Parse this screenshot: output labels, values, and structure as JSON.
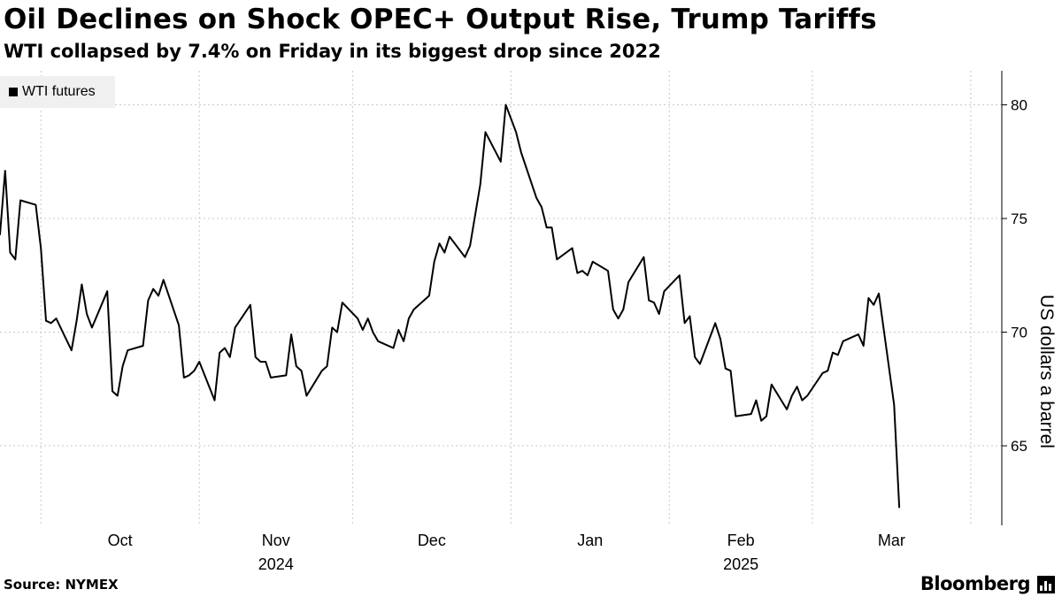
{
  "header": {
    "title": "Oil Declines on Shock OPEC+ Output Rise, Trump Tariffs",
    "subtitle": "WTI collapsed by 7.4% on Friday in its biggest drop since 2022"
  },
  "footer": {
    "source": "Source: NYMEX",
    "brand": "Bloomberg",
    "brand_icon": "bloomberg-terminal-icon"
  },
  "chart_data": {
    "type": "line",
    "ylabel": "US dollars a barrel",
    "ylim": [
      61.5,
      81.5
    ],
    "yticks": [
      65,
      70,
      75,
      80
    ],
    "y_axis_position": "right",
    "grid": "dotted",
    "legend_position": "top-left",
    "x_range": [
      "2024-09-23",
      "2025-04-05"
    ],
    "xticks": [
      {
        "label": "Oct",
        "date": "2024-10-01",
        "year": ""
      },
      {
        "label": "Nov",
        "date": "2024-11-01",
        "year": "2024"
      },
      {
        "label": "Dec",
        "date": "2024-12-01",
        "year": ""
      },
      {
        "label": "Jan",
        "date": "2025-01-01",
        "year": ""
      },
      {
        "label": "Feb",
        "date": "2025-02-01",
        "year": "2025"
      },
      {
        "label": "Mar",
        "date": "2025-03-01",
        "year": ""
      }
    ],
    "series": [
      {
        "name": "WTI futures",
        "color": "#000000",
        "points": [
          [
            "2024-09-23",
            74.3
          ],
          [
            "2024-09-24",
            77.1
          ],
          [
            "2024-09-25",
            73.5
          ],
          [
            "2024-09-26",
            73.2
          ],
          [
            "2024-09-27",
            75.8
          ],
          [
            "2024-09-30",
            75.6
          ],
          [
            "2024-10-01",
            73.7
          ],
          [
            "2024-10-02",
            70.5
          ],
          [
            "2024-10-03",
            70.4
          ],
          [
            "2024-10-04",
            70.6
          ],
          [
            "2024-10-07",
            69.2
          ],
          [
            "2024-10-08",
            70.5
          ],
          [
            "2024-10-09",
            72.1
          ],
          [
            "2024-10-10",
            70.8
          ],
          [
            "2024-10-11",
            70.2
          ],
          [
            "2024-10-14",
            71.8
          ],
          [
            "2024-10-15",
            67.4
          ],
          [
            "2024-10-16",
            67.2
          ],
          [
            "2024-10-17",
            68.5
          ],
          [
            "2024-10-18",
            69.2
          ],
          [
            "2024-10-21",
            69.4
          ],
          [
            "2024-10-22",
            71.4
          ],
          [
            "2024-10-23",
            71.9
          ],
          [
            "2024-10-24",
            71.6
          ],
          [
            "2024-10-25",
            72.3
          ],
          [
            "2024-10-28",
            70.3
          ],
          [
            "2024-10-29",
            68.0
          ],
          [
            "2024-10-30",
            68.1
          ],
          [
            "2024-10-31",
            68.3
          ],
          [
            "2024-11-01",
            68.7
          ],
          [
            "2024-11-04",
            67.0
          ],
          [
            "2024-11-05",
            69.1
          ],
          [
            "2024-11-06",
            69.3
          ],
          [
            "2024-11-07",
            68.9
          ],
          [
            "2024-11-08",
            70.2
          ],
          [
            "2024-11-11",
            71.2
          ],
          [
            "2024-11-12",
            68.9
          ],
          [
            "2024-11-13",
            68.7
          ],
          [
            "2024-11-14",
            68.7
          ],
          [
            "2024-11-15",
            68.0
          ],
          [
            "2024-11-18",
            68.1
          ],
          [
            "2024-11-19",
            69.9
          ],
          [
            "2024-11-20",
            68.5
          ],
          [
            "2024-11-21",
            68.3
          ],
          [
            "2024-11-22",
            67.2
          ],
          [
            "2024-11-25",
            68.3
          ],
          [
            "2024-11-26",
            68.5
          ],
          [
            "2024-11-27",
            70.2
          ],
          [
            "2024-11-28",
            70.0
          ],
          [
            "2024-11-29",
            71.3
          ],
          [
            "2024-12-02",
            70.6
          ],
          [
            "2024-12-03",
            70.1
          ],
          [
            "2024-12-04",
            70.6
          ],
          [
            "2024-12-05",
            70.0
          ],
          [
            "2024-12-06",
            69.6
          ],
          [
            "2024-12-09",
            69.3
          ],
          [
            "2024-12-10",
            70.1
          ],
          [
            "2024-12-11",
            69.6
          ],
          [
            "2024-12-12",
            70.6
          ],
          [
            "2024-12-13",
            71.0
          ],
          [
            "2024-12-16",
            71.6
          ],
          [
            "2024-12-17",
            73.1
          ],
          [
            "2024-12-18",
            73.9
          ],
          [
            "2024-12-19",
            73.5
          ],
          [
            "2024-12-20",
            74.2
          ],
          [
            "2024-12-23",
            73.3
          ],
          [
            "2024-12-24",
            73.8
          ],
          [
            "2024-12-26",
            76.5
          ],
          [
            "2024-12-27",
            78.8
          ],
          [
            "2024-12-30",
            77.5
          ],
          [
            "2024-12-31",
            80.0
          ],
          [
            "2025-01-02",
            78.8
          ],
          [
            "2025-01-03",
            77.9
          ],
          [
            "2025-01-06",
            75.9
          ],
          [
            "2025-01-07",
            75.5
          ],
          [
            "2025-01-08",
            74.6
          ],
          [
            "2025-01-09",
            74.6
          ],
          [
            "2025-01-10",
            73.2
          ],
          [
            "2025-01-13",
            73.7
          ],
          [
            "2025-01-14",
            72.6
          ],
          [
            "2025-01-15",
            72.7
          ],
          [
            "2025-01-16",
            72.5
          ],
          [
            "2025-01-17",
            73.1
          ],
          [
            "2025-01-20",
            72.7
          ],
          [
            "2025-01-21",
            71.0
          ],
          [
            "2025-01-22",
            70.6
          ],
          [
            "2025-01-23",
            71.0
          ],
          [
            "2025-01-24",
            72.2
          ],
          [
            "2025-01-27",
            73.3
          ],
          [
            "2025-01-28",
            71.4
          ],
          [
            "2025-01-29",
            71.3
          ],
          [
            "2025-01-30",
            70.8
          ],
          [
            "2025-01-31",
            71.8
          ],
          [
            "2025-02-03",
            72.5
          ],
          [
            "2025-02-04",
            70.4
          ],
          [
            "2025-02-05",
            70.7
          ],
          [
            "2025-02-06",
            68.9
          ],
          [
            "2025-02-07",
            68.6
          ],
          [
            "2025-02-10",
            70.4
          ],
          [
            "2025-02-11",
            69.7
          ],
          [
            "2025-02-12",
            68.4
          ],
          [
            "2025-02-13",
            68.3
          ],
          [
            "2025-02-14",
            66.3
          ],
          [
            "2025-02-17",
            66.4
          ],
          [
            "2025-02-18",
            67.0
          ],
          [
            "2025-02-19",
            66.1
          ],
          [
            "2025-02-20",
            66.3
          ],
          [
            "2025-02-21",
            67.7
          ],
          [
            "2025-02-24",
            66.6
          ],
          [
            "2025-02-25",
            67.2
          ],
          [
            "2025-02-26",
            67.6
          ],
          [
            "2025-02-27",
            67.0
          ],
          [
            "2025-02-28",
            67.2
          ],
          [
            "2025-03-03",
            68.2
          ],
          [
            "2025-03-04",
            68.3
          ],
          [
            "2025-03-05",
            69.1
          ],
          [
            "2025-03-06",
            69.0
          ],
          [
            "2025-03-07",
            69.6
          ],
          [
            "2025-03-10",
            69.9
          ],
          [
            "2025-03-11",
            69.4
          ],
          [
            "2025-03-12",
            71.5
          ],
          [
            "2025-03-13",
            71.2
          ],
          [
            "2025-03-14",
            71.7
          ],
          [
            "2025-03-17",
            66.8
          ],
          [
            "2025-03-18",
            62.3
          ]
        ]
      }
    ]
  }
}
